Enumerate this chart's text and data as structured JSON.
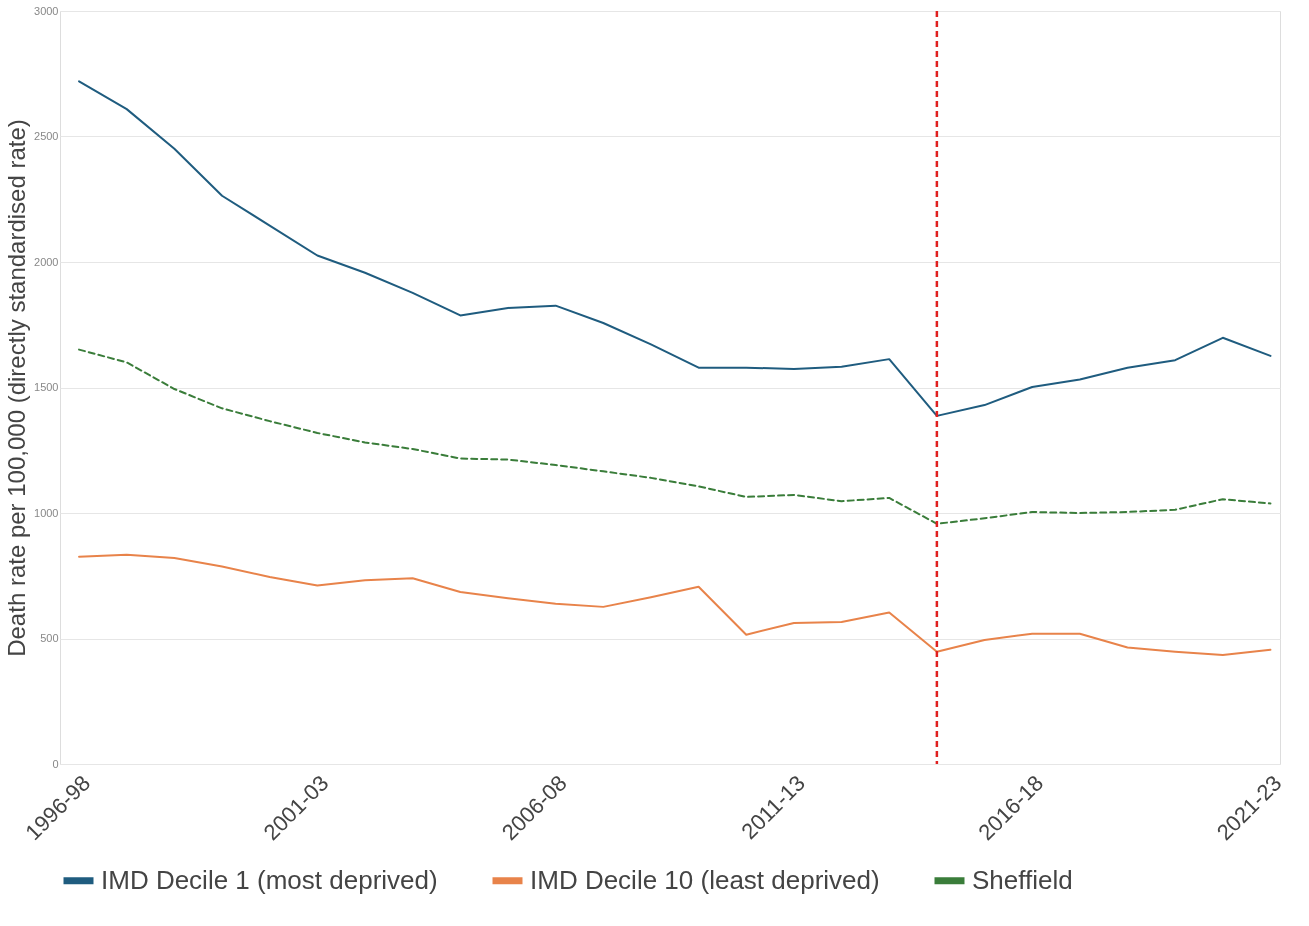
{
  "chart_data": {
    "type": "line",
    "ylabel": "Death rate per 100,000 (directly standardised rate)",
    "categories": [
      "1996-98",
      null,
      null,
      null,
      null,
      "2001-03",
      null,
      null,
      null,
      null,
      "2006-08",
      null,
      null,
      null,
      null,
      "2011-13",
      null,
      null,
      null,
      null,
      "2016-18",
      null,
      null,
      null,
      null,
      "2021-23"
    ],
    "ylim": [
      0,
      3000
    ],
    "yticks": [
      0,
      500,
      1000,
      1500,
      2000,
      2500,
      3000
    ],
    "series": [
      {
        "name": "IMD Decile 1 (most deprived)",
        "color": "#1f5c7f",
        "line_style": "solid",
        "values": [
          2720,
          2609,
          2451,
          2264,
          2145,
          2026,
          1957,
          1877,
          1787,
          1817,
          1826,
          1757,
          1672,
          1579,
          1579,
          1574,
          1583,
          1613,
          1387,
          1430,
          1502,
          1532,
          1579,
          1609,
          1698,
          1626
        ]
      },
      {
        "name": "IMD Decile 10 (least deprived)",
        "color": "#e8834a",
        "line_style": "solid",
        "values": [
          826,
          834,
          821,
          787,
          745,
          711,
          732,
          740,
          685,
          660,
          638,
          626,
          664,
          706,
          515,
          562,
          566,
          604,
          447,
          494,
          519,
          519,
          464,
          447,
          434,
          455
        ]
      },
      {
        "name": "Sheffield",
        "color": "#3a7d3a",
        "line_style": "dashed",
        "values": [
          1651,
          1600,
          1494,
          1417,
          1366,
          1319,
          1281,
          1255,
          1217,
          1213,
          1191,
          1166,
          1140,
          1106,
          1064,
          1072,
          1047,
          1060,
          957,
          979,
          1004,
          1000,
          1004,
          1013,
          1055,
          1038
        ]
      }
    ],
    "grid": "y",
    "legend": "bottom"
  }
}
